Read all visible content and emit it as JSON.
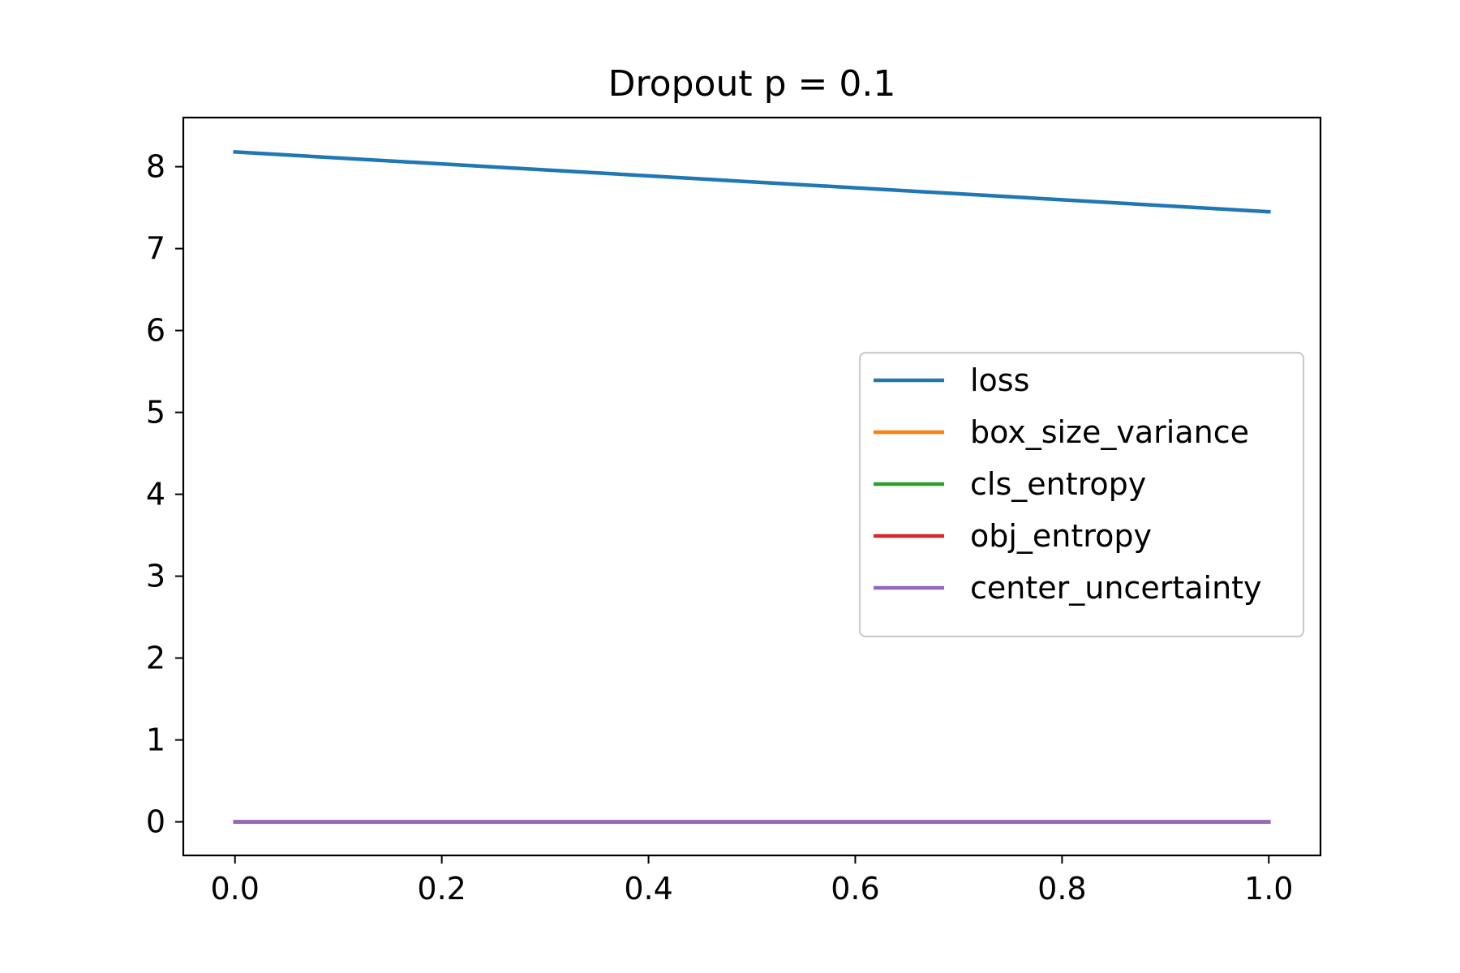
{
  "chart_data": {
    "type": "line",
    "title": "Dropout p = 0.1",
    "xlabel": "",
    "ylabel": "",
    "x": [
      0.0,
      1.0
    ],
    "xlim": [
      -0.05,
      1.05
    ],
    "ylim": [
      -0.41,
      8.6
    ],
    "xticks": [
      0.0,
      0.2,
      0.4,
      0.6,
      0.8,
      1.0
    ],
    "xtick_labels": [
      "0.0",
      "0.2",
      "0.4",
      "0.6",
      "0.8",
      "1.0"
    ],
    "yticks": [
      0,
      1,
      2,
      3,
      4,
      5,
      6,
      7,
      8
    ],
    "ytick_labels": [
      "0",
      "1",
      "2",
      "3",
      "4",
      "5",
      "6",
      "7",
      "8"
    ],
    "grid": false,
    "legend_position": "center-right",
    "series": [
      {
        "name": "loss",
        "color": "#1f77b4",
        "values": [
          8.18,
          7.45
        ]
      },
      {
        "name": "box_size_variance",
        "color": "#ff7f0e",
        "values": [
          0.0,
          0.0
        ]
      },
      {
        "name": "cls_entropy",
        "color": "#2ca02c",
        "values": [
          0.0,
          0.0
        ]
      },
      {
        "name": "obj_entropy",
        "color": "#d62728",
        "values": [
          0.0,
          0.0
        ]
      },
      {
        "name": "center_uncertainty",
        "color": "#9467bd",
        "values": [
          0.0,
          0.0
        ]
      }
    ]
  }
}
